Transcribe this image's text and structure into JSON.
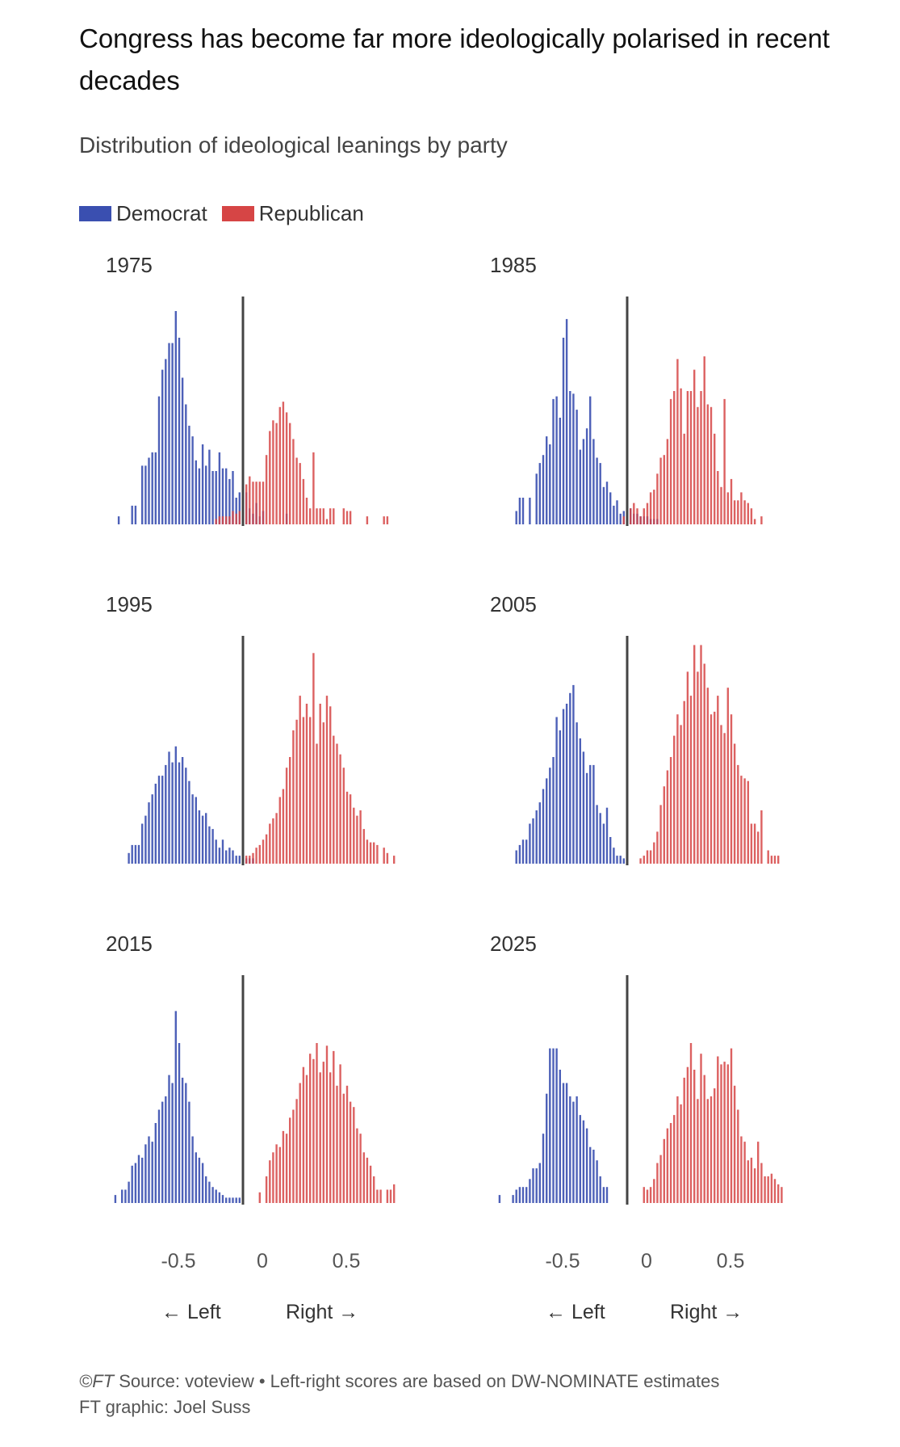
{
  "title": "Congress has become far more ideologically polarised in recent decades",
  "subtitle": "Distribution of ideological leanings by party",
  "legend": [
    {
      "label": "Democrat",
      "color": "#3a4fb0"
    },
    {
      "label": "Republican",
      "color": "#d64545"
    }
  ],
  "axis": {
    "ticks": [
      {
        "value": -0.5,
        "label": "-0.5"
      },
      {
        "value": 0,
        "label": "0"
      },
      {
        "value": 0.5,
        "label": "0.5"
      }
    ],
    "left_label": "← Left",
    "right_label": "Right →"
  },
  "footer": {
    "source_prefix": "©FT",
    "source_text": " Source: voteview • Left-right scores are based on DW-NOMINATE estimates",
    "credit": "FT graphic: Joel Suss"
  },
  "chart_data": [
    {
      "type": "bar",
      "year": "1975",
      "xlim": [
        -0.75,
        0.9
      ],
      "bin_width": 0.02,
      "series": [
        {
          "name": "Democrat",
          "color": "#3a4fb0",
          "x": [
            -0.74,
            -0.66,
            -0.64,
            -0.6,
            -0.58,
            -0.56,
            -0.54,
            -0.52,
            -0.5,
            -0.48,
            -0.46,
            -0.44,
            -0.42,
            -0.4,
            -0.38,
            -0.36,
            -0.34,
            -0.32,
            -0.3,
            -0.28,
            -0.26,
            -0.24,
            -0.22,
            -0.2,
            -0.18,
            -0.16,
            -0.14,
            -0.12,
            -0.1,
            -0.08,
            -0.06,
            -0.04,
            -0.02,
            0,
            0.02,
            0.04,
            0.06,
            0.08,
            0.1,
            0.12,
            0.26
          ],
          "y": [
            3,
            7,
            7,
            22,
            22,
            25,
            27,
            27,
            48,
            58,
            62,
            68,
            68,
            80,
            70,
            55,
            45,
            37,
            33,
            24,
            21,
            30,
            22,
            28,
            20,
            20,
            27,
            21,
            21,
            17,
            20,
            10,
            12,
            9,
            12,
            6,
            4,
            8,
            3,
            5,
            4
          ]
        },
        {
          "name": "Republican",
          "color": "#d64545",
          "x": [
            -0.16,
            -0.14,
            -0.12,
            -0.1,
            -0.08,
            -0.06,
            -0.04,
            -0.02,
            0,
            0.02,
            0.04,
            0.06,
            0.08,
            0.1,
            0.12,
            0.14,
            0.16,
            0.18,
            0.2,
            0.22,
            0.24,
            0.26,
            0.28,
            0.3,
            0.32,
            0.34,
            0.36,
            0.38,
            0.4,
            0.42,
            0.44,
            0.46,
            0.48,
            0.5,
            0.52,
            0.54,
            0.6,
            0.62,
            0.64,
            0.74,
            0.84,
            0.86
          ],
          "y": [
            2,
            3,
            3,
            3,
            3,
            5,
            4,
            5,
            10,
            15,
            18,
            16,
            16,
            16,
            16,
            26,
            35,
            39,
            38,
            44,
            46,
            42,
            38,
            32,
            25,
            23,
            17,
            10,
            6,
            27,
            6,
            6,
            6,
            2,
            6,
            6,
            6,
            5,
            5,
            3,
            3,
            3
          ]
        }
      ]
    },
    {
      "type": "bar",
      "year": "1985",
      "xlim": [
        -0.75,
        0.9
      ],
      "bin_width": 0.02,
      "series": [
        {
          "name": "Democrat",
          "color": "#3a4fb0",
          "x": [
            -0.66,
            -0.64,
            -0.62,
            -0.58,
            -0.54,
            -0.52,
            -0.5,
            -0.48,
            -0.46,
            -0.44,
            -0.42,
            -0.4,
            -0.38,
            -0.36,
            -0.34,
            -0.32,
            -0.3,
            -0.28,
            -0.26,
            -0.24,
            -0.22,
            -0.2,
            -0.18,
            -0.16,
            -0.14,
            -0.12,
            -0.1,
            -0.08,
            -0.06,
            -0.04,
            -0.02,
            0,
            0.02,
            0.04,
            0.06,
            0.08,
            0.1,
            0.12,
            0.14,
            0.16,
            0.18
          ],
          "y": [
            5,
            10,
            10,
            10,
            19,
            23,
            26,
            33,
            30,
            47,
            48,
            40,
            70,
            77,
            50,
            49,
            43,
            28,
            32,
            36,
            48,
            32,
            25,
            23,
            14,
            16,
            12,
            7,
            9,
            4,
            5,
            5,
            6,
            4,
            4,
            3,
            3,
            3,
            2,
            2,
            2
          ]
        },
        {
          "name": "Republican",
          "color": "#d64545",
          "x": [
            -0.02,
            0,
            0.02,
            0.04,
            0.06,
            0.08,
            0.1,
            0.12,
            0.14,
            0.16,
            0.18,
            0.2,
            0.22,
            0.24,
            0.26,
            0.28,
            0.3,
            0.32,
            0.34,
            0.36,
            0.38,
            0.4,
            0.42,
            0.44,
            0.46,
            0.48,
            0.5,
            0.52,
            0.54,
            0.56,
            0.58,
            0.6,
            0.62,
            0.64,
            0.66,
            0.68,
            0.7,
            0.72,
            0.74,
            0.76,
            0.8
          ],
          "y": [
            3,
            4,
            6,
            8,
            6,
            3,
            6,
            8,
            12,
            13,
            19,
            25,
            26,
            32,
            47,
            50,
            62,
            51,
            34,
            50,
            50,
            58,
            44,
            50,
            63,
            45,
            44,
            34,
            20,
            14,
            47,
            12,
            17,
            9,
            9,
            12,
            9,
            8,
            6,
            2,
            3
          ]
        }
      ]
    },
    {
      "type": "bar",
      "year": "1995",
      "xlim": [
        -0.75,
        0.9
      ],
      "bin_width": 0.02,
      "series": [
        {
          "name": "Democrat",
          "color": "#3a4fb0",
          "x": [
            -0.68,
            -0.66,
            -0.64,
            -0.62,
            -0.6,
            -0.58,
            -0.56,
            -0.54,
            -0.52,
            -0.5,
            -0.48,
            -0.46,
            -0.44,
            -0.42,
            -0.4,
            -0.38,
            -0.36,
            -0.34,
            -0.32,
            -0.3,
            -0.28,
            -0.26,
            -0.24,
            -0.22,
            -0.2,
            -0.18,
            -0.16,
            -0.14,
            -0.12,
            -0.1,
            -0.08,
            -0.06,
            -0.04,
            -0.02,
            0,
            0.02,
            0.04,
            0.06
          ],
          "y": [
            4,
            7,
            7,
            7,
            15,
            18,
            23,
            26,
            30,
            33,
            33,
            37,
            42,
            38,
            44,
            38,
            40,
            36,
            31,
            26,
            25,
            20,
            18,
            19,
            14,
            13,
            9,
            6,
            9,
            5,
            6,
            5,
            3,
            3,
            2,
            2,
            2,
            2
          ]
        },
        {
          "name": "Republican",
          "color": "#d64545",
          "x": [
            0,
            0.02,
            0.04,
            0.06,
            0.08,
            0.1,
            0.12,
            0.14,
            0.16,
            0.18,
            0.2,
            0.22,
            0.24,
            0.26,
            0.28,
            0.3,
            0.32,
            0.34,
            0.36,
            0.38,
            0.4,
            0.42,
            0.44,
            0.46,
            0.48,
            0.5,
            0.52,
            0.54,
            0.56,
            0.58,
            0.6,
            0.62,
            0.64,
            0.66,
            0.68,
            0.7,
            0.72,
            0.74,
            0.76,
            0.78,
            0.8,
            0.84,
            0.86,
            0.9
          ],
          "y": [
            3,
            3,
            3,
            4,
            6,
            7,
            9,
            11,
            15,
            17,
            19,
            25,
            28,
            36,
            40,
            50,
            54,
            63,
            55,
            60,
            55,
            79,
            45,
            60,
            53,
            63,
            59,
            48,
            45,
            41,
            36,
            27,
            26,
            21,
            18,
            20,
            13,
            9,
            8,
            8,
            7,
            6,
            4,
            3
          ]
        }
      ]
    },
    {
      "type": "bar",
      "year": "2005",
      "xlim": [
        -0.75,
        0.9
      ],
      "bin_width": 0.02,
      "series": [
        {
          "name": "Democrat",
          "color": "#3a4fb0",
          "x": [
            -0.66,
            -0.64,
            -0.62,
            -0.6,
            -0.58,
            -0.56,
            -0.54,
            -0.52,
            -0.5,
            -0.48,
            -0.46,
            -0.44,
            -0.42,
            -0.4,
            -0.38,
            -0.36,
            -0.34,
            -0.32,
            -0.3,
            -0.28,
            -0.26,
            -0.24,
            -0.22,
            -0.2,
            -0.18,
            -0.16,
            -0.14,
            -0.12,
            -0.1,
            -0.08,
            -0.06,
            -0.04,
            -0.02
          ],
          "y": [
            5,
            7,
            9,
            9,
            15,
            17,
            20,
            23,
            28,
            32,
            36,
            40,
            55,
            50,
            58,
            60,
            64,
            67,
            53,
            47,
            42,
            34,
            37,
            37,
            22,
            19,
            15,
            21,
            10,
            6,
            3,
            3,
            2
          ]
        },
        {
          "name": "Republican",
          "color": "#d64545",
          "x": [
            0,
            0.08,
            0.1,
            0.12,
            0.14,
            0.16,
            0.18,
            0.2,
            0.22,
            0.24,
            0.26,
            0.28,
            0.3,
            0.32,
            0.34,
            0.36,
            0.38,
            0.4,
            0.42,
            0.44,
            0.46,
            0.48,
            0.5,
            0.52,
            0.54,
            0.56,
            0.58,
            0.6,
            0.62,
            0.64,
            0.66,
            0.68,
            0.7,
            0.72,
            0.74,
            0.76,
            0.78,
            0.8,
            0.84,
            0.86,
            0.88,
            0.9
          ],
          "y": [
            2,
            2,
            3,
            5,
            5,
            8,
            12,
            22,
            29,
            35,
            40,
            48,
            56,
            52,
            61,
            72,
            63,
            82,
            72,
            82,
            75,
            66,
            56,
            57,
            63,
            52,
            49,
            66,
            56,
            45,
            37,
            33,
            32,
            31,
            15,
            15,
            12,
            20,
            5,
            3,
            3,
            3
          ]
        }
      ]
    },
    {
      "type": "bar",
      "year": "2015",
      "xlim": [
        -0.75,
        0.9
      ],
      "bin_width": 0.02,
      "series": [
        {
          "name": "Democrat",
          "color": "#3a4fb0",
          "x": [
            -0.76,
            -0.72,
            -0.7,
            -0.68,
            -0.66,
            -0.64,
            -0.62,
            -0.6,
            -0.58,
            -0.56,
            -0.54,
            -0.52,
            -0.5,
            -0.48,
            -0.46,
            -0.44,
            -0.42,
            -0.4,
            -0.38,
            -0.36,
            -0.34,
            -0.32,
            -0.3,
            -0.28,
            -0.26,
            -0.24,
            -0.22,
            -0.2,
            -0.18,
            -0.16,
            -0.14,
            -0.12,
            -0.1,
            -0.08,
            -0.06,
            -0.04,
            -0.02
          ],
          "y": [
            3,
            5,
            5,
            8,
            14,
            15,
            18,
            17,
            22,
            25,
            23,
            30,
            35,
            38,
            40,
            48,
            45,
            72,
            60,
            47,
            45,
            38,
            25,
            19,
            17,
            15,
            10,
            8,
            6,
            5,
            4,
            3,
            2,
            2,
            2,
            2,
            2
          ]
        },
        {
          "name": "Republican",
          "color": "#d64545",
          "x": [
            0.1,
            0.14,
            0.16,
            0.18,
            0.2,
            0.22,
            0.24,
            0.26,
            0.28,
            0.3,
            0.32,
            0.34,
            0.36,
            0.38,
            0.4,
            0.42,
            0.44,
            0.46,
            0.48,
            0.5,
            0.52,
            0.54,
            0.56,
            0.58,
            0.6,
            0.62,
            0.64,
            0.66,
            0.68,
            0.7,
            0.72,
            0.74,
            0.76,
            0.78,
            0.8,
            0.82,
            0.86,
            0.88,
            0.9
          ],
          "y": [
            4,
            10,
            16,
            19,
            22,
            21,
            27,
            26,
            32,
            35,
            39,
            45,
            51,
            48,
            56,
            54,
            60,
            49,
            53,
            59,
            49,
            57,
            44,
            52,
            41,
            44,
            38,
            36,
            28,
            26,
            19,
            17,
            14,
            10,
            5,
            5,
            5,
            5,
            7
          ]
        }
      ]
    },
    {
      "type": "bar",
      "year": "2025",
      "xlim": [
        -0.75,
        0.9
      ],
      "bin_width": 0.02,
      "series": [
        {
          "name": "Democrat",
          "color": "#3a4fb0",
          "x": [
            -0.76,
            -0.68,
            -0.66,
            -0.64,
            -0.62,
            -0.6,
            -0.58,
            -0.56,
            -0.54,
            -0.52,
            -0.5,
            -0.48,
            -0.46,
            -0.44,
            -0.42,
            -0.4,
            -0.38,
            -0.36,
            -0.34,
            -0.32,
            -0.3,
            -0.28,
            -0.26,
            -0.24,
            -0.22,
            -0.2,
            -0.18,
            -0.16,
            -0.14,
            -0.12
          ],
          "y": [
            3,
            3,
            5,
            6,
            6,
            6,
            9,
            13,
            13,
            15,
            26,
            41,
            58,
            58,
            58,
            50,
            45,
            45,
            40,
            38,
            40,
            33,
            31,
            28,
            21,
            20,
            16,
            10,
            6,
            6
          ]
        },
        {
          "name": "Republican",
          "color": "#d64545",
          "x": [
            0.1,
            0.12,
            0.14,
            0.16,
            0.18,
            0.2,
            0.22,
            0.24,
            0.26,
            0.28,
            0.3,
            0.32,
            0.34,
            0.36,
            0.38,
            0.4,
            0.42,
            0.44,
            0.46,
            0.48,
            0.5,
            0.52,
            0.54,
            0.56,
            0.58,
            0.6,
            0.62,
            0.64,
            0.66,
            0.68,
            0.7,
            0.72,
            0.74,
            0.76,
            0.78,
            0.8,
            0.82,
            0.84,
            0.86,
            0.88,
            0.9,
            0.92,
            0.94
          ],
          "y": [
            6,
            5,
            6,
            9,
            15,
            18,
            24,
            28,
            30,
            33,
            40,
            37,
            47,
            51,
            60,
            50,
            39,
            56,
            48,
            39,
            40,
            43,
            55,
            52,
            53,
            52,
            58,
            44,
            35,
            25,
            23,
            16,
            17,
            13,
            23,
            15,
            10,
            10,
            11,
            9,
            7,
            6,
            5
          ]
        }
      ]
    }
  ]
}
